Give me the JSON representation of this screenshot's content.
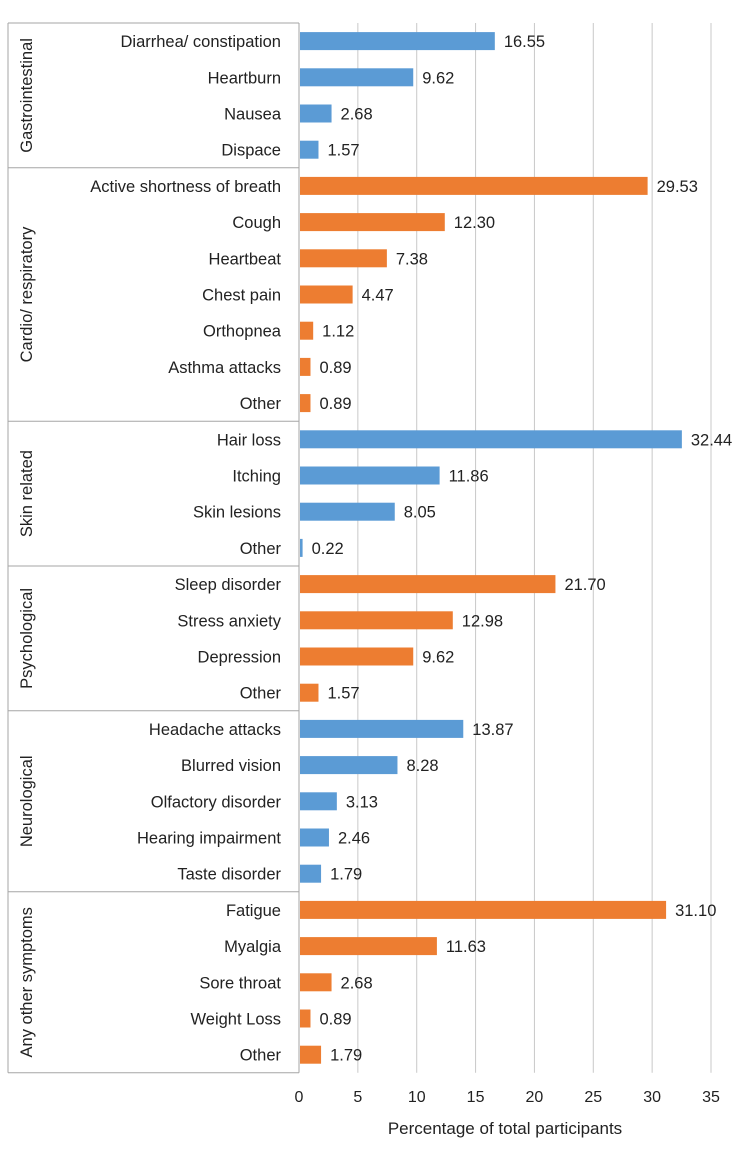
{
  "chart_data": {
    "type": "bar",
    "orientation": "horizontal",
    "xlabel": "Percentage of total participants",
    "xlim": [
      0,
      35
    ],
    "xticks": [
      0,
      5,
      10,
      15,
      20,
      25,
      30,
      35
    ],
    "grid": true,
    "colors": {
      "blue": "#5b9bd5",
      "orange": "#ed7d31",
      "grid": "#c8c8c8",
      "axis": "#a6a6a6"
    },
    "groups": [
      {
        "name": "Gastrointestinal",
        "color": "blue",
        "items": [
          {
            "label": "Diarrhea/ constipation",
            "value": 16.55,
            "display": "16.55"
          },
          {
            "label": "Heartburn",
            "value": 9.62,
            "display": "9.62"
          },
          {
            "label": "Nausea",
            "value": 2.68,
            "display": "2.68"
          },
          {
            "label": "Dispace",
            "value": 1.57,
            "display": "1.57"
          }
        ]
      },
      {
        "name": "Cardio/ respiratory",
        "color": "orange",
        "items": [
          {
            "label": "Active shortness of breath",
            "value": 29.53,
            "display": "29.53"
          },
          {
            "label": "Cough",
            "value": 12.3,
            "display": "12.30"
          },
          {
            "label": "Heartbeat",
            "value": 7.38,
            "display": "7.38"
          },
          {
            "label": "Chest pain",
            "value": 4.47,
            "display": "4.47"
          },
          {
            "label": "Orthopnea",
            "value": 1.12,
            "display": "1.12"
          },
          {
            "label": "Asthma attacks",
            "value": 0.89,
            "display": "0.89"
          },
          {
            "label": "Other",
            "value": 0.89,
            "display": "0.89"
          }
        ]
      },
      {
        "name": "Skin related",
        "color": "blue",
        "items": [
          {
            "label": "Hair loss",
            "value": 32.44,
            "display": "32.44"
          },
          {
            "label": "Itching",
            "value": 11.86,
            "display": "11.86"
          },
          {
            "label": "Skin lesions",
            "value": 8.05,
            "display": "8.05"
          },
          {
            "label": "Other",
            "value": 0.22,
            "display": "0.22"
          }
        ]
      },
      {
        "name": "Psychological",
        "color": "orange",
        "items": [
          {
            "label": "Sleep disorder",
            "value": 21.7,
            "display": "21.70"
          },
          {
            "label": "Stress anxiety",
            "value": 12.98,
            "display": "12.98"
          },
          {
            "label": "Depression",
            "value": 9.62,
            "display": "9.62"
          },
          {
            "label": "Other",
            "value": 1.57,
            "display": "1.57"
          }
        ]
      },
      {
        "name": "Neurological",
        "color": "blue",
        "items": [
          {
            "label": "Headache attacks",
            "value": 13.87,
            "display": "13.87"
          },
          {
            "label": "Blurred vision",
            "value": 8.28,
            "display": "8.28"
          },
          {
            "label": "Olfactory disorder",
            "value": 3.13,
            "display": "3.13"
          },
          {
            "label": "Hearing impairment",
            "value": 2.46,
            "display": "2.46"
          },
          {
            "label": "Taste disorder",
            "value": 1.79,
            "display": "1.79"
          }
        ]
      },
      {
        "name": "Any other symptoms",
        "color": "orange",
        "items": [
          {
            "label": "Fatigue",
            "value": 31.1,
            "display": "31.10"
          },
          {
            "label": "Myalgia",
            "value": 11.63,
            "display": "11.63"
          },
          {
            "label": "Sore throat",
            "value": 2.68,
            "display": "2.68"
          },
          {
            "label": "Weight Loss",
            "value": 0.89,
            "display": "0.89"
          },
          {
            "label": "Other",
            "value": 1.79,
            "display": "1.79"
          }
        ]
      }
    ]
  }
}
